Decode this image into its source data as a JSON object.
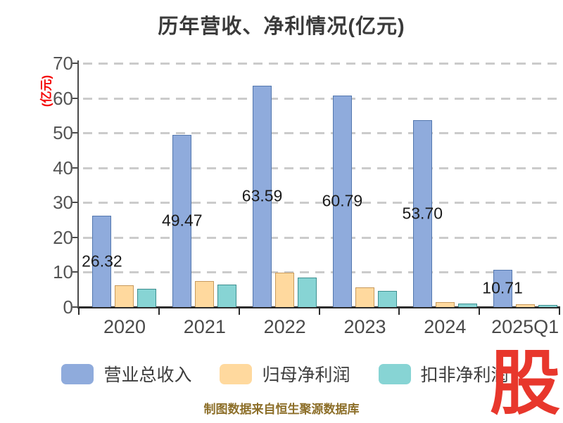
{
  "title": "历年营收、净利情况(亿元)",
  "y_axis": {
    "unit_label": "(亿元)",
    "ticks": [
      0,
      10,
      20,
      30,
      40,
      50,
      60,
      70
    ],
    "max": 70
  },
  "chart_data": {
    "type": "bar",
    "title": "历年营收、净利情况(亿元)",
    "ylabel": "(亿元)",
    "ylim": [
      0,
      70
    ],
    "grid": "horizontal-dashed",
    "legend_position": "bottom-center",
    "categories": [
      "2020",
      "2021",
      "2022",
      "2023",
      "2024",
      "2025Q1"
    ],
    "series": [
      {
        "name": "营业总收入",
        "color": "#8fabdc",
        "border_color": "#5377ae",
        "values": [
          26.32,
          49.47,
          63.59,
          60.79,
          53.7,
          10.71
        ],
        "data_labels": [
          "26.32",
          "49.47",
          "63.59",
          "60.79",
          "53.70",
          "10.71"
        ]
      },
      {
        "name": "归母净利润",
        "color": "#ffd99e",
        "border_color": "#c89a5c",
        "values": [
          6.3,
          7.5,
          9.8,
          5.6,
          1.5,
          0.9
        ],
        "data_labels": []
      },
      {
        "name": "扣非净利润",
        "color": "#87d4d4",
        "border_color": "#3e8f8f",
        "values": [
          5.2,
          6.4,
          8.5,
          4.7,
          1.0,
          0.6
        ],
        "data_labels": []
      }
    ]
  },
  "legend": {
    "items": [
      "营业总收入",
      "归母净利润",
      "扣非净利润"
    ]
  },
  "caption": "制图数据来自恒生聚源数据库",
  "logo_text": "股",
  "colors": {
    "background": "#ffffff",
    "title_text": "#3a3a3a",
    "axis_label_text": "#545454",
    "gridline": "#cbcbcb",
    "axis_line": "#2b2b2b",
    "y_unit_red": "#f40000",
    "caption_gold": "#8c6e28",
    "logo_red": "#e8372c"
  }
}
